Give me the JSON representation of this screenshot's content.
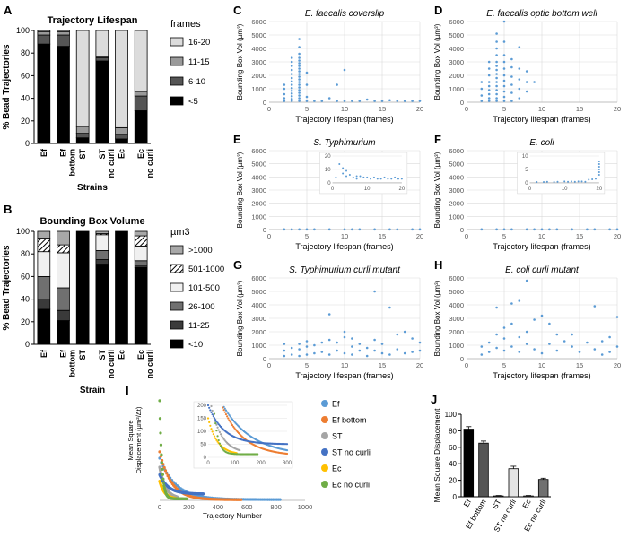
{
  "panels": {
    "A": "A",
    "B": "B",
    "C": "C",
    "D": "D",
    "E": "E",
    "F": "F",
    "G": "G",
    "H": "H",
    "I": "I",
    "J": "J"
  },
  "chart_data": [
    {
      "id": "A",
      "type": "bar",
      "stacked": true,
      "title": "Trajectory Lifespan",
      "xlabel": "Strains",
      "ylabel": "% Bead Trajectories",
      "ylim": [
        0,
        100
      ],
      "yticks": [
        0,
        20,
        40,
        60,
        80,
        100
      ],
      "categories": [
        "Ef",
        "Ef\nbottom",
        "ST",
        "ST\nno curli",
        "Ec",
        "Ec\nno curli"
      ],
      "legend_title": "frames",
      "series": [
        {
          "name": "<5",
          "color": "#000000",
          "values": [
            88,
            86,
            5,
            73,
            4,
            29
          ]
        },
        {
          "name": "6-10",
          "color": "#555555",
          "values": [
            8,
            10,
            4,
            3,
            4,
            13
          ]
        },
        {
          "name": "11-15",
          "color": "#9a9a9a",
          "values": [
            3,
            3,
            6,
            1,
            6,
            4
          ]
        },
        {
          "name": "16-20",
          "color": "#dcdcdc",
          "values": [
            1,
            1,
            85,
            23,
            86,
            54
          ]
        }
      ]
    },
    {
      "id": "B",
      "type": "bar",
      "stacked": true,
      "title": "Bounding  Box Volume",
      "xlabel": "Strain",
      "ylabel": "% Bead Trajectories",
      "ylim": [
        0,
        100
      ],
      "yticks": [
        0,
        20,
        40,
        60,
        80,
        100
      ],
      "categories": [
        "Ef",
        "Ef\nbottom",
        "ST",
        "ST\nno curli",
        "Ec",
        "Ec\nno curli"
      ],
      "legend_title": "µm3",
      "series": [
        {
          "name": "<10",
          "color": "#000000",
          "values": [
            31,
            21,
            100,
            71,
            100,
            68
          ]
        },
        {
          "name": "11-25",
          "color": "#3a3a3a",
          "values": [
            9,
            9,
            0,
            4,
            0,
            2
          ]
        },
        {
          "name": "26-100",
          "color": "#707070",
          "values": [
            20,
            20,
            0,
            8,
            0,
            4
          ]
        },
        {
          "name": "101-500",
          "color": "#f0f0f0",
          "values": [
            22,
            31,
            0,
            14,
            0,
            13
          ]
        },
        {
          "name": "501-1000",
          "color": "#ffffff",
          "hatch": true,
          "values": [
            12,
            7,
            0,
            1,
            0,
            9
          ]
        },
        {
          "name": ">1000",
          "color": "#a8a8a8",
          "values": [
            6,
            12,
            0,
            2,
            0,
            4
          ]
        }
      ]
    },
    {
      "id": "C",
      "type": "scatter",
      "title": "E. faecalis coverslip",
      "xlabel": "Trajectory lifespan (frames)",
      "ylabel": "Bounding Box Vol (µm³)",
      "xlim": [
        0,
        20
      ],
      "ylim": [
        0,
        6000
      ],
      "xticks": [
        0,
        5,
        10,
        15,
        20
      ],
      "yticks": [
        0,
        1000,
        2000,
        3000,
        4000,
        5000,
        6000
      ],
      "x": [
        2,
        2,
        2,
        2,
        2,
        3,
        3,
        3,
        3,
        3,
        3,
        3,
        3,
        3,
        3,
        3,
        3,
        3,
        3,
        4,
        4,
        4,
        4,
        4,
        4,
        4,
        4,
        4,
        4,
        4,
        4,
        4,
        4,
        4,
        4,
        4,
        4,
        4,
        4,
        5,
        5,
        5,
        5,
        6,
        7,
        8,
        9,
        9,
        10,
        10,
        11,
        12,
        13,
        14,
        15,
        16,
        17,
        18,
        19,
        20
      ],
      "y": [
        100,
        300,
        600,
        1000,
        1300,
        100,
        250,
        450,
        650,
        850,
        1050,
        1300,
        1550,
        1800,
        2100,
        2400,
        2700,
        3000,
        3300,
        100,
        300,
        500,
        700,
        900,
        1100,
        1300,
        1500,
        1700,
        1900,
        2100,
        2300,
        2500,
        2700,
        2900,
        3100,
        3300,
        3600,
        4100,
        4700,
        100,
        400,
        1300,
        2200,
        100,
        100,
        300,
        1300,
        100,
        2400,
        100,
        100,
        100,
        200,
        100,
        100,
        150,
        100,
        100,
        100,
        100
      ]
    },
    {
      "id": "D",
      "type": "scatter",
      "title": "E. faecalis optic bottom well",
      "xlabel": "Trajectory lifespan (frames)",
      "ylabel": "Bounding Box Vol (µm³)",
      "xlim": [
        0,
        20
      ],
      "ylim": [
        0,
        6000
      ],
      "xticks": [
        0,
        5,
        10,
        15,
        20
      ],
      "yticks": [
        0,
        1000,
        2000,
        3000,
        4000,
        5000,
        6000
      ],
      "x": [
        2,
        2,
        2,
        2,
        3,
        3,
        3,
        3,
        3,
        3,
        3,
        3,
        3,
        4,
        4,
        4,
        4,
        4,
        4,
        4,
        4,
        4,
        4,
        4,
        4,
        4,
        4,
        4,
        5,
        5,
        5,
        5,
        5,
        5,
        5,
        5,
        5,
        5,
        5,
        6,
        6,
        6,
        6,
        6,
        6,
        7,
        7,
        7,
        7,
        7,
        8,
        8,
        8,
        9
      ],
      "y": [
        100,
        500,
        1000,
        1500,
        100,
        300,
        600,
        900,
        1200,
        1500,
        2000,
        2500,
        3000,
        100,
        300,
        600,
        900,
        1200,
        1500,
        1800,
        2100,
        2400,
        2700,
        3000,
        3500,
        4000,
        4500,
        5100,
        100,
        400,
        800,
        1200,
        1600,
        2000,
        2500,
        3000,
        3500,
        4500,
        6000,
        100,
        700,
        1300,
        1900,
        2600,
        3200,
        300,
        1000,
        1700,
        2500,
        4100,
        800,
        1500,
        2300,
        1500
      ]
    },
    {
      "id": "E",
      "type": "scatter",
      "title": "S. Typhimurium",
      "xlabel": "Trajectory lifespan (frames)",
      "ylabel": "Bounding Box Vol (µm³)",
      "xlim": [
        0,
        20
      ],
      "ylim": [
        0,
        6000
      ],
      "xticks": [
        0,
        5,
        10,
        15,
        20
      ],
      "yticks": [
        0,
        1000,
        2000,
        3000,
        4000,
        5000,
        6000
      ],
      "x": [
        2,
        3,
        4,
        5,
        6,
        8,
        10,
        11,
        12,
        14,
        16,
        17,
        19,
        20
      ],
      "y": [
        10,
        10,
        10,
        10,
        10,
        10,
        10,
        10,
        10,
        10,
        10,
        10,
        10,
        10
      ],
      "inset": {
        "xlim": [
          0,
          20
        ],
        "ylim": [
          0,
          20
        ],
        "xticks": [
          0,
          10,
          20
        ],
        "yticks": [
          0,
          10,
          20
        ],
        "x": [
          1,
          2,
          3,
          3,
          4,
          4,
          5,
          6,
          7,
          7,
          8,
          9,
          10,
          11,
          12,
          13,
          14,
          15,
          16,
          17,
          18,
          19,
          20
        ],
        "y": [
          4,
          14,
          11,
          7,
          9,
          5,
          6,
          4,
          5,
          3,
          5,
          4,
          4,
          3,
          4,
          3,
          3,
          4,
          3,
          3,
          4,
          3,
          3
        ]
      }
    },
    {
      "id": "F",
      "type": "scatter",
      "title": "E. coli",
      "xlabel": "Trajectory lifespan (frames)",
      "ylabel": "Bounding Box Vol (µm³)",
      "xlim": [
        0,
        20
      ],
      "ylim": [
        0,
        6000
      ],
      "xticks": [
        0,
        5,
        10,
        15,
        20
      ],
      "yticks": [
        0,
        1000,
        2000,
        3000,
        4000,
        5000,
        6000
      ],
      "x": [
        2,
        4,
        5,
        6,
        8,
        9,
        10,
        11,
        12,
        14,
        16,
        17,
        19,
        20
      ],
      "y": [
        10,
        10,
        10,
        10,
        10,
        10,
        10,
        10,
        10,
        10,
        10,
        10,
        10,
        10
      ],
      "inset": {
        "xlim": [
          0,
          20
        ],
        "ylim": [
          0,
          10
        ],
        "xticks": [
          0,
          10,
          20
        ],
        "yticks": [
          0,
          5,
          10
        ],
        "x": [
          2,
          4,
          5,
          7,
          8,
          10,
          11,
          12,
          13,
          14,
          15,
          16,
          17,
          18,
          19,
          20,
          20,
          20,
          20,
          20,
          20
        ],
        "y": [
          0.3,
          0.3,
          0.4,
          0.3,
          0.4,
          0.5,
          0.4,
          0.5,
          0.4,
          0.5,
          0.5,
          0.4,
          1.2,
          1.3,
          1.5,
          3,
          4,
          5,
          6,
          7,
          8
        ]
      }
    },
    {
      "id": "G",
      "type": "scatter",
      "title": "S. Typhimurium curli mutant",
      "xlabel": "Trajectory lifespan (frames)",
      "ylabel": "Bounding Box Vol (µm³)",
      "xlim": [
        0,
        20
      ],
      "ylim": [
        0,
        6000
      ],
      "xticks": [
        0,
        5,
        10,
        15,
        20
      ],
      "yticks": [
        0,
        1000,
        2000,
        3000,
        4000,
        5000,
        6000
      ],
      "x": [
        2,
        2,
        2,
        3,
        3,
        4,
        4,
        4,
        5,
        5,
        5,
        6,
        6,
        7,
        7,
        8,
        8,
        8,
        9,
        9,
        10,
        10,
        10,
        11,
        11,
        11,
        12,
        12,
        13,
        13,
        14,
        14,
        14,
        15,
        15,
        16,
        16,
        17,
        17,
        18,
        18,
        19,
        19,
        20,
        20
      ],
      "y": [
        200,
        600,
        1100,
        300,
        800,
        200,
        700,
        1100,
        300,
        900,
        1300,
        400,
        1000,
        500,
        1200,
        3300,
        300,
        1400,
        600,
        1200,
        400,
        1600,
        2000,
        1500,
        900,
        300,
        600,
        1100,
        200,
        800,
        5000,
        1400,
        600,
        400,
        1100,
        300,
        3800,
        700,
        1800,
        2000,
        400,
        1500,
        500,
        600,
        1200
      ]
    },
    {
      "id": "H",
      "type": "scatter",
      "title": "E. coli curli mutant",
      "xlabel": "Trajectory lifespan (frames)",
      "ylabel": "Bounding Box Vol (µm³)",
      "xlim": [
        0,
        20
      ],
      "ylim": [
        0,
        6000
      ],
      "xticks": [
        0,
        5,
        10,
        15,
        20
      ],
      "yticks": [
        0,
        1000,
        2000,
        3000,
        4000,
        5000,
        6000
      ],
      "x": [
        2,
        2,
        3,
        3,
        4,
        4,
        4,
        5,
        5,
        5,
        6,
        6,
        6,
        7,
        7,
        7,
        8,
        8,
        8,
        9,
        9,
        10,
        10,
        11,
        11,
        12,
        12,
        13,
        14,
        14,
        15,
        16,
        17,
        17,
        18,
        18,
        19,
        19,
        20,
        20
      ],
      "y": [
        300,
        900,
        500,
        1200,
        800,
        1800,
        3800,
        600,
        1500,
        2300,
        900,
        2600,
        4100,
        500,
        1600,
        4300,
        1100,
        2000,
        5800,
        700,
        2900,
        400,
        3200,
        1100,
        2600,
        600,
        1800,
        1300,
        900,
        1800,
        500,
        1200,
        3900,
        700,
        300,
        1300,
        1600,
        500,
        3100,
        900
      ]
    },
    {
      "id": "I",
      "type": "scatter",
      "xlabel": "Trajectory Number",
      "ylabel": "Mean Square\nDisplacement (µm²/Δt)",
      "xlim": [
        0,
        1000
      ],
      "ylim": [
        0,
        800
      ],
      "xticks": [
        0,
        200,
        400,
        600,
        800,
        1000
      ],
      "series": [
        {
          "name": "Ef",
          "color": "#5b9bd5",
          "n": 830,
          "y0": 330,
          "tau": 110,
          "floor": 6
        },
        {
          "name": "Ef bottom",
          "color": "#ed7d31",
          "n": 560,
          "y0": 380,
          "tau": 80,
          "floor": 5
        },
        {
          "name": "ST",
          "color": "#a5a5a5",
          "n": 120,
          "y0": 260,
          "tau": 40,
          "floor": 15
        },
        {
          "name": "ST no curli",
          "color": "#4472c4",
          "n": 300,
          "y0": 200,
          "tau": 60,
          "floor": 50
        },
        {
          "name": "Ec",
          "color": "#ffc000",
          "n": 110,
          "y0": 150,
          "tau": 35,
          "floor": 10
        },
        {
          "name": "Ec no curli",
          "color": "#70ad47",
          "n": 190,
          "y0": 780,
          "tau": 15,
          "floor": 12
        }
      ],
      "inset": {
        "xlim": [
          0,
          300
        ],
        "ylim": [
          0,
          200
        ],
        "xticks": [
          0,
          100,
          200,
          300
        ],
        "yticks": [
          0,
          50,
          100,
          150,
          200
        ]
      }
    },
    {
      "id": "J",
      "type": "bar",
      "ylabel": "Mean Square Displacement",
      "ylim": [
        0,
        100
      ],
      "yticks": [
        0,
        20,
        40,
        60,
        80,
        100
      ],
      "categories": [
        "Ef",
        "Ef bottom",
        "ST",
        "ST no curli",
        "Ec",
        "Ec no curli"
      ],
      "values": [
        82,
        65,
        1,
        34,
        1,
        21
      ],
      "errors": [
        3,
        2.5,
        0.5,
        3,
        0.5,
        1.5
      ],
      "colors": [
        "#000000",
        "#555555",
        "#c0c0c0",
        "#e4e4e4",
        "#f2f2f2",
        "#707070"
      ]
    }
  ]
}
